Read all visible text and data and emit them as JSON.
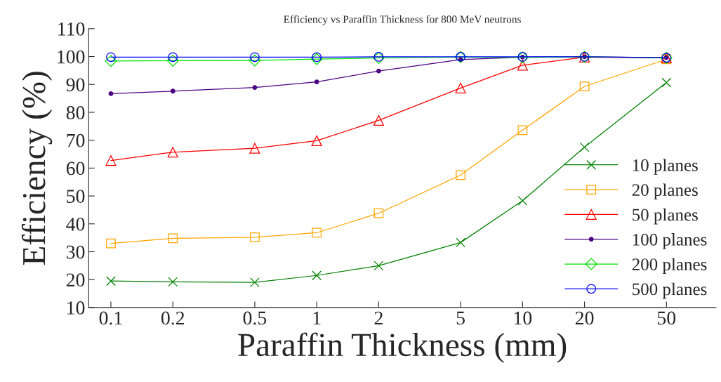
{
  "chart_data": {
    "type": "line",
    "title": "Efficiency vs Paraffin Thickness for 800 MeV neutrons",
    "xlabel": "Paraffin Thickness (mm)",
    "ylabel": "Efficiency (%)",
    "x": [
      0.1,
      0.2,
      0.5,
      1,
      2,
      5,
      10,
      20,
      50
    ],
    "log": "x",
    "xlim": [
      0.078,
      87
    ],
    "xticks": [
      0.1,
      0.2,
      0.5,
      1,
      2,
      5,
      10,
      20,
      50
    ],
    "ylim": [
      10,
      110
    ],
    "yticks": [
      10,
      20,
      30,
      40,
      50,
      60,
      70,
      80,
      90,
      100,
      110
    ],
    "grid": false,
    "legend": "bottom right",
    "series": [
      {
        "name": "10 planes",
        "color": "#008000",
        "marker": "cross",
        "values": [
          19.5,
          19.2,
          19.0,
          21.5,
          25.0,
          33.3,
          48.3,
          67.5,
          90.7
        ]
      },
      {
        "name": "20 planes",
        "color": "#ffa500",
        "marker": "square",
        "values": [
          33.0,
          34.8,
          35.2,
          36.8,
          43.8,
          57.5,
          73.6,
          89.3,
          99.0
        ]
      },
      {
        "name": "50 planes",
        "color": "#ff0000",
        "marker": "triangle",
        "values": [
          62.7,
          65.7,
          67.1,
          69.8,
          77.1,
          88.7,
          96.9,
          99.8,
          99.5
        ]
      },
      {
        "name": "100 planes",
        "color": "#4b0082",
        "marker": "circle_filled",
        "values": [
          86.7,
          87.6,
          88.9,
          90.9,
          94.8,
          98.9,
          99.8,
          99.9,
          99.6
        ]
      },
      {
        "name": "200 planes",
        "color": "#00e000",
        "marker": "diamond",
        "values": [
          98.4,
          98.5,
          98.6,
          99.1,
          99.5,
          99.8,
          99.7,
          99.9,
          99.5
        ]
      },
      {
        "name": "500 planes",
        "color": "#0000ff",
        "marker": "circle",
        "values": [
          99.8,
          99.8,
          99.8,
          99.8,
          99.9,
          99.9,
          99.9,
          99.9,
          99.6
        ]
      }
    ]
  }
}
